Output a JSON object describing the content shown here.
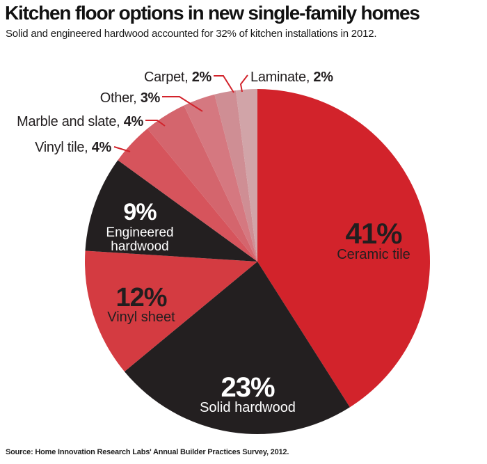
{
  "chart_data": {
    "type": "pie",
    "title": "Kitchen floor options in new single-family homes",
    "subtitle": "Solid and engineered hardwood accounted for 32% of kitchen installations in 2012.",
    "source": "Source: Home Innovation Research Labs' Annual Builder Practices Survey, 2012.",
    "unit": "%",
    "direction": "clockwise",
    "start_angle_deg": 0,
    "legend_position": "labels-inside-large-slices-and-callouts-for-small-slices",
    "accent_color": "#d2232b",
    "leader_line_color": "#d2232b",
    "slices": [
      {
        "label": "Ceramic tile",
        "value": 41,
        "color": "#d2232b",
        "label_style": "inside",
        "text_color": "#221e1f"
      },
      {
        "label": "Solid hardwood",
        "value": 23,
        "color": "#231f20",
        "label_style": "inside",
        "text_color": "#ffffff"
      },
      {
        "label": "Vinyl sheet",
        "value": 12,
        "color": "#d43b41",
        "label_style": "inside",
        "text_color": "#221e1f"
      },
      {
        "label": "Engineered hardwood",
        "value": 9,
        "color": "#231f20",
        "label_style": "inside",
        "text_color": "#ffffff"
      },
      {
        "label": "Vinyl tile",
        "value": 4,
        "color": "#d6545c",
        "label_style": "callout",
        "text_color": "#221e1f"
      },
      {
        "label": "Marble and slate",
        "value": 4,
        "color": "#d4656d",
        "label_style": "callout",
        "text_color": "#221e1f"
      },
      {
        "label": "Other",
        "value": 3,
        "color": "#d57880",
        "label_style": "callout",
        "text_color": "#221e1f"
      },
      {
        "label": "Carpet",
        "value": 2,
        "color": "#cf8e94",
        "label_style": "callout",
        "text_color": "#221e1f"
      },
      {
        "label": "Laminate",
        "value": 2,
        "color": "#d1a4a8",
        "label_style": "callout",
        "text_color": "#221e1f"
      }
    ]
  }
}
